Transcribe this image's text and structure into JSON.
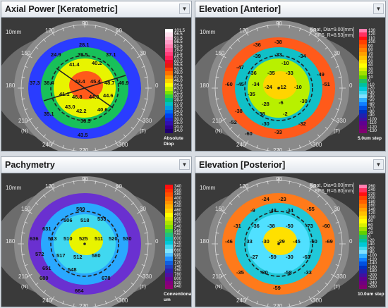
{
  "panels": [
    {
      "title": "Axial Power [Keratometric]",
      "mm": "10mm",
      "angles": {
        "a90": "90",
        "a60": "60",
        "a120": "120",
        "a150": "150",
        "a30": "30",
        "a180": "180",
        "a0": "0",
        "a210": "210",
        "a330": "330",
        "a240": "240",
        "a300": "300",
        "a270": "270"
      },
      "eye_left": "(N)",
      "eye_right": "(T)",
      "info": [
        "",
        ""
      ],
      "unit": [
        "Absolute",
        "Diop"
      ],
      "scale": [
        "101.5",
        "96.5",
        "91.5",
        "86.5",
        "81.5",
        "76.5",
        "71.5",
        "65.5",
        "60.5",
        "55.5",
        "50.5",
        "49.0",
        "47.5",
        "46.0",
        "44.5",
        "43.0",
        "41.5",
        "40.0",
        "38.5",
        "37.0",
        "35.5",
        "34.0",
        "32.5",
        "30.0",
        "25.0",
        "20.0",
        "14.0"
      ],
      "scale_colors": [
        "#ffffff",
        "#ffe0ee",
        "#ffc0dd",
        "#ff9ec8",
        "#ff7eb0",
        "#ff5e98",
        "#ff3e7a",
        "#ff1f5a",
        "#f20a2e",
        "#e51a0d",
        "#ff4000",
        "#ff7000",
        "#ffa000",
        "#ffd000",
        "#ffff00",
        "#c8f000",
        "#80e000",
        "#30d040",
        "#00c080",
        "#00c0c0",
        "#00a0e0",
        "#0070f0",
        "#0040f0",
        "#2020d0",
        "#3010b0",
        "#300090",
        "#200070"
      ],
      "numbers": [
        "28.1",
        "24.9",
        "39.5",
        "37.1",
        "41.4",
        "40.2",
        "37.3",
        "38.4",
        "43.4",
        "45.4",
        "48.7",
        "46.9",
        "41.1",
        "46.8",
        "44.8",
        "44.6",
        "43.0",
        "42.2",
        "40.6",
        "38.3",
        "35.1",
        "43.5"
      ]
    },
    {
      "title": "Elevation [Anterior]",
      "mm": "10mm",
      "angles": {
        "a90": "90",
        "a60": "60",
        "a120": "120",
        "a150": "150",
        "a30": "30",
        "a180": "180",
        "a0": "0",
        "a210": "210",
        "a330": "330",
        "a240": "240",
        "a300": "300",
        "a270": "270"
      },
      "eye_left": "(N)",
      "eye_right": "(T)",
      "info": [
        "Float, Dia=9.00[mm]",
        "BFS_R=8.53[mm]"
      ],
      "unit": [
        "5.0um step"
      ],
      "scale": [
        "130",
        "120",
        "110",
        "100",
        "90",
        "80",
        "70",
        "60",
        "50",
        "40",
        "30",
        "20",
        "10",
        "0",
        "-10",
        "-20",
        "-30",
        "-40",
        "-50",
        "-60",
        "-70",
        "-80",
        "-90",
        "-100",
        "-110",
        "-120",
        "-130"
      ],
      "scale_colors": [
        "#ff80b0",
        "#ff3060",
        "#ff1010",
        "#ff4000",
        "#ff6000",
        "#ff8000",
        "#ffa000",
        "#ffc000",
        "#ffe000",
        "#ffff00",
        "#d8f000",
        "#a0e000",
        "#60d000",
        "#20c060",
        "#00c0a0",
        "#00c8d8",
        "#40d8f0",
        "#80e0ff",
        "#30b0ff",
        "#1080ff",
        "#0050e0",
        "#0030c0",
        "#2020b0",
        "#4010a0",
        "#600090",
        "#700080",
        "#800070"
      ],
      "numbers": [
        "-36",
        "-38",
        "-39",
        "-33",
        "-34",
        "-47",
        "-36",
        "-35",
        "-33",
        "-49",
        "-24",
        "-12",
        "-10",
        "-34",
        "-60",
        "-45",
        "-35",
        "-6",
        "-28",
        "-51",
        "-38",
        "-38",
        "-2",
        "-30",
        "-60",
        "-10",
        "-30",
        "-33",
        "-32",
        "-52"
      ]
    },
    {
      "title": "Pachymetry",
      "mm": "10mm",
      "angles": {
        "a90": "90",
        "a60": "60",
        "a120": "120",
        "a150": "150",
        "a30": "30",
        "a180": "180",
        "a0": "0",
        "a210": "210",
        "a330": "330",
        "a240": "240",
        "a300": "300",
        "a270": "270"
      },
      "eye_left": "(N)",
      "eye_right": "(T)",
      "info": [
        "",
        ""
      ],
      "unit": [
        "Conventional",
        "um"
      ],
      "scale": [
        "340",
        "360",
        "380",
        "400",
        "420",
        "440",
        "460",
        "480",
        "500",
        "520",
        "540",
        "560",
        "580",
        "600",
        "620",
        "640",
        "660",
        "680",
        "700",
        "720",
        "740",
        "760",
        "780",
        "800",
        "820",
        "840"
      ],
      "scale_colors": [
        "#ff1010",
        "#ff3000",
        "#ff5000",
        "#ff7000",
        "#ff9000",
        "#ffb000",
        "#ffd000",
        "#ffff00",
        "#e0f000",
        "#b0e000",
        "#80e000",
        "#40d040",
        "#20c080",
        "#00c0b0",
        "#00c8d8",
        "#40d8f0",
        "#80e4ff",
        "#50c0ff",
        "#2090ff",
        "#1060e0",
        "#2040c0",
        "#3020b0",
        "#5010a0",
        "#6a0090",
        "#800080",
        "#900070"
      ],
      "numbers": [
        "589",
        "506",
        "518",
        "533",
        "636",
        "513",
        "510",
        "525",
        "511",
        "520",
        "530",
        "631",
        "572",
        "517",
        "512",
        "580",
        "651",
        "548",
        "680",
        "678",
        "664"
      ]
    },
    {
      "title": "Elevation [Posterior]",
      "mm": "10mm",
      "angles": {
        "a90": "90",
        "a60": "60",
        "a120": "120",
        "a150": "150",
        "a30": "30",
        "a180": "180",
        "a0": "0",
        "a210": "210",
        "a330": "330",
        "a240": "240",
        "a300": "300",
        "a270": "270"
      },
      "eye_left": "(N)",
      "eye_right": "(T)",
      "info": [
        "Float, Dia=9.00[mm]",
        "BFS_R=6.80[mm]"
      ],
      "unit": [
        "10.0um step"
      ],
      "scale": [
        "260",
        "240",
        "220",
        "200",
        "180",
        "160",
        "140",
        "120",
        "100",
        "80",
        "60",
        "40",
        "20",
        "0",
        "-20",
        "-40",
        "-60",
        "-80",
        "-100",
        "-120",
        "-140",
        "-160",
        "-180",
        "-200",
        "-220",
        "-240",
        "-260"
      ],
      "scale_colors": [
        "#ff80b0",
        "#ff3060",
        "#ff1010",
        "#ff4000",
        "#ff6000",
        "#ff8000",
        "#ffa000",
        "#ffc000",
        "#ffe000",
        "#ffff00",
        "#d8f000",
        "#a0e000",
        "#60d000",
        "#20c060",
        "#00c0a0",
        "#00c8d8",
        "#40d8f0",
        "#80e0ff",
        "#30b0ff",
        "#1080ff",
        "#0050e0",
        "#0030c0",
        "#2020b0",
        "#4010a0",
        "#600090",
        "#700080",
        "#800070"
      ],
      "numbers": [
        "-24",
        "-23",
        "-9",
        "-48",
        "-34",
        "-55",
        "-31",
        "-36",
        "-38",
        "-50",
        "-73",
        "-60",
        "-46",
        "-33",
        "-30",
        "-29",
        "-45",
        "-60",
        "-69",
        "-27",
        "-59",
        "-30",
        "-63",
        "-35",
        "-30",
        "-58",
        "-33",
        "-59"
      ]
    }
  ]
}
